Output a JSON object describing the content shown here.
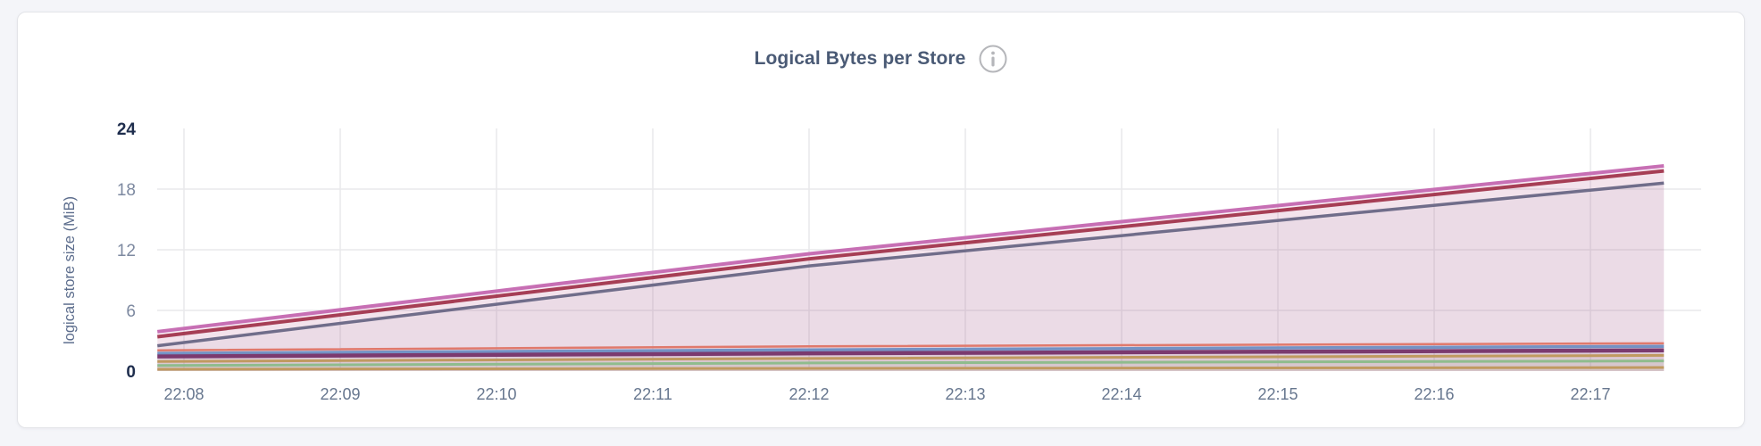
{
  "header": {
    "title": "Logical Bytes per Store",
    "info_icon": "info-icon"
  },
  "colors": {
    "page_bg": "#f4f5f9",
    "card_bg": "#ffffff",
    "card_border": "#e3e4e8",
    "title": "#4a5a75",
    "grid": "#e9e9eb",
    "x_tick": "#67778f",
    "y_tick": "#7d89a0",
    "y_tick_minmax": "#1e2d4d",
    "y_axis_title": "#5b6c8c",
    "info_icon": "#b5b6ba"
  },
  "chart_data": {
    "type": "area",
    "title": "Logical Bytes per Store",
    "xlabel": "",
    "ylabel": "logical store size (MiB)",
    "ylim": [
      0,
      24
    ],
    "y_ticks": [
      0,
      6,
      12,
      18,
      24
    ],
    "y_gridlines": [
      6,
      12,
      18
    ],
    "x_ticks": [
      "22:08",
      "22:09",
      "22:10",
      "22:11",
      "22:12",
      "22:13",
      "22:14",
      "22:15",
      "22:16",
      "22:17"
    ],
    "x_tick_minutes": [
      8,
      9,
      10,
      11,
      12,
      13,
      14,
      15,
      16,
      17
    ],
    "x_domain_minutes": [
      7.83,
      17.47
    ],
    "grid": true,
    "legend": "none",
    "series": [
      {
        "name": "series-1-orchid",
        "color": "#c76fb4",
        "width": 4,
        "fill_opacity": 0.13,
        "t": [
          7.83,
          12.0,
          17.47
        ],
        "v": [
          3.9,
          11.6,
          20.3
        ]
      },
      {
        "name": "series-2-crimson",
        "color": "#a63e55",
        "width": 4,
        "fill_opacity": 0.05,
        "t": [
          7.83,
          12.0,
          17.47
        ],
        "v": [
          3.4,
          11.1,
          19.8
        ]
      },
      {
        "name": "series-3-slate",
        "color": "#706d8a",
        "width": 3.5,
        "fill_opacity": 0.06,
        "t": [
          7.83,
          12.0,
          17.47
        ],
        "v": [
          2.5,
          10.4,
          18.6
        ]
      },
      {
        "name": "series-4-salmon",
        "color": "#e0796c",
        "width": 2.5,
        "fill_opacity": 0.04,
        "t": [
          7.83,
          12.0,
          17.47
        ],
        "v": [
          2.05,
          2.45,
          2.75
        ]
      },
      {
        "name": "series-5-blue",
        "color": "#7492c4",
        "width": 3.5,
        "fill_opacity": 0.05,
        "t": [
          7.83,
          12.0,
          17.47
        ],
        "v": [
          1.75,
          2.1,
          2.45
        ]
      },
      {
        "name": "series-6-plum",
        "color": "#7b3a6f",
        "width": 4.5,
        "fill_opacity": 0.05,
        "t": [
          7.83,
          12.0,
          17.47
        ],
        "v": [
          1.45,
          1.75,
          2.05
        ]
      },
      {
        "name": "series-7-tan",
        "color": "#c09a60",
        "width": 3,
        "fill_opacity": 0.06,
        "t": [
          7.83,
          12.0,
          17.47
        ],
        "v": [
          0.95,
          1.25,
          1.55
        ]
      },
      {
        "name": "series-8-green",
        "color": "#8fbc8d",
        "width": 3,
        "fill_opacity": 0.06,
        "t": [
          7.83,
          12.0,
          17.47
        ],
        "v": [
          0.55,
          0.8,
          1.0
        ]
      },
      {
        "name": "series-9-tan",
        "color": "#c09a60",
        "width": 3,
        "fill_opacity": 0.05,
        "t": [
          7.83,
          12.0,
          17.47
        ],
        "v": [
          0.18,
          0.27,
          0.35
        ]
      }
    ]
  }
}
